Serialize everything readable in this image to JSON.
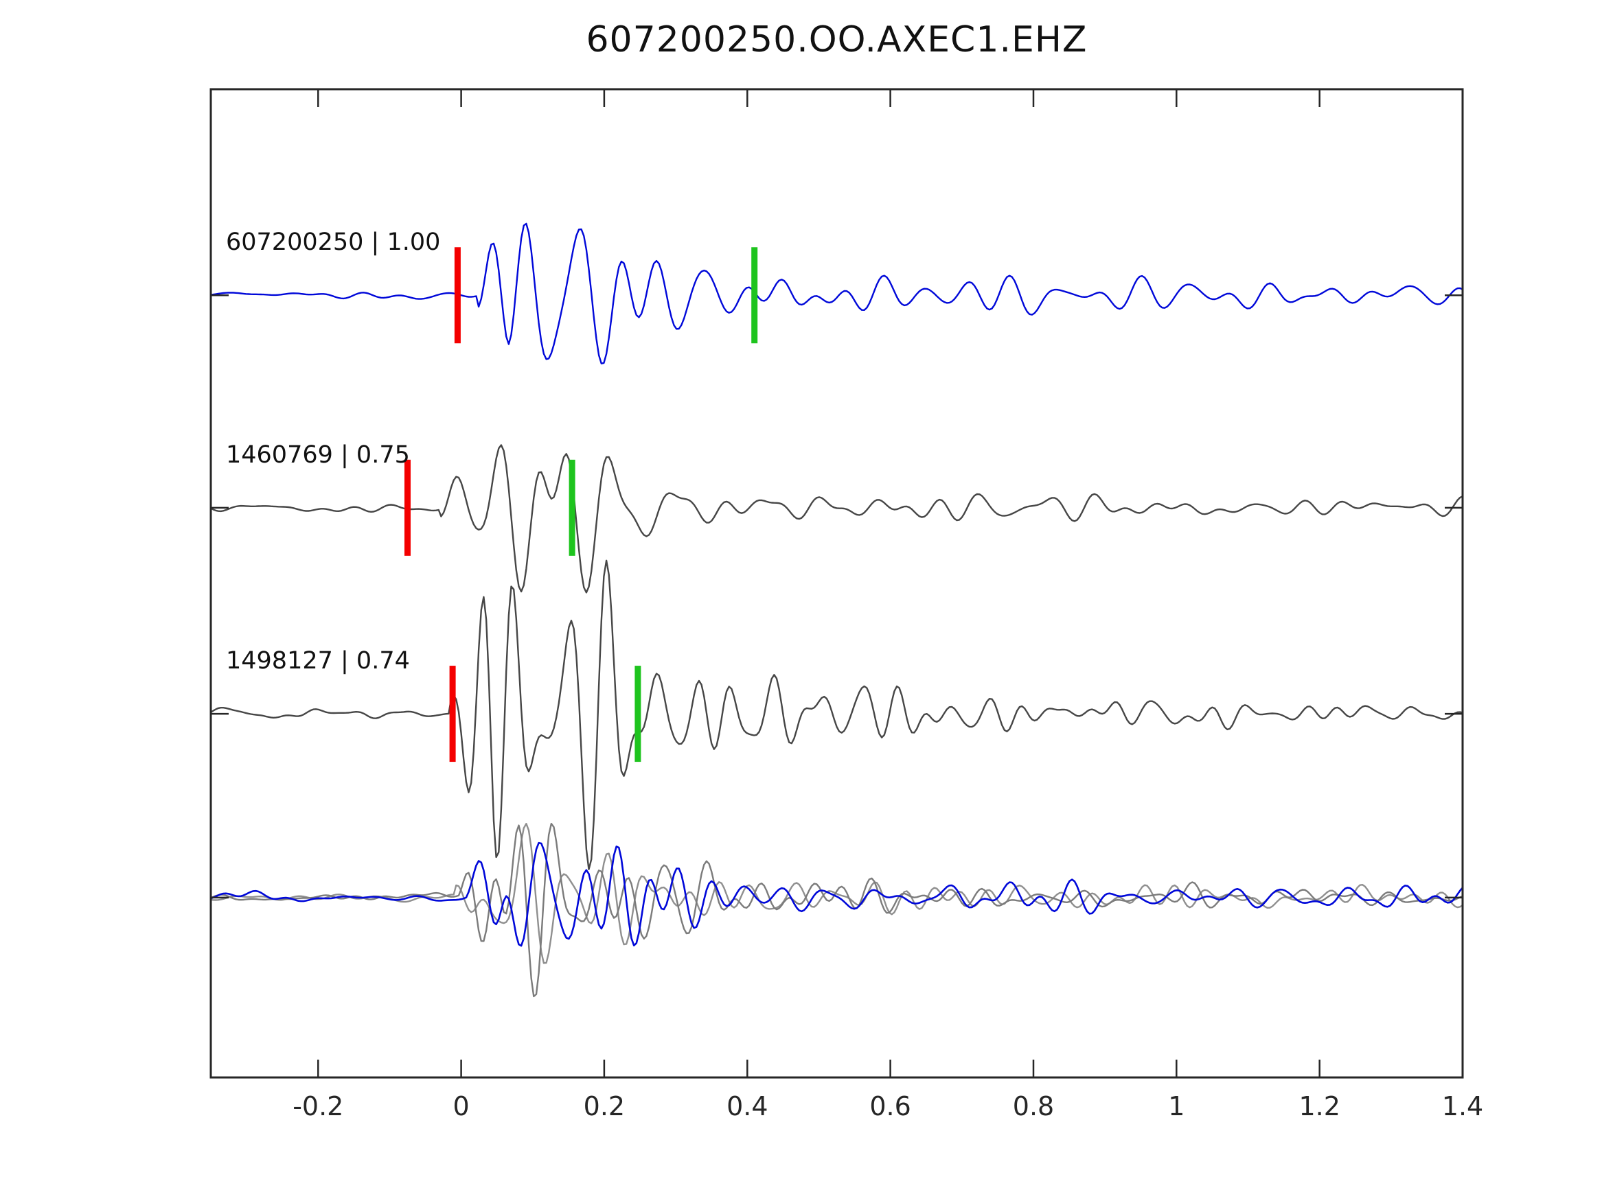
{
  "title": "607200250.OO.AXEC1.EHZ",
  "chart_data": {
    "type": "line",
    "title": "607200250.OO.AXEC1.EHZ",
    "subtitle": "",
    "xlabel": "",
    "ylabel": "",
    "grid": false,
    "legend": null,
    "xlim": [
      -0.35,
      1.4
    ],
    "x_ticks": [
      -0.2,
      0,
      0.2,
      0.4,
      0.6,
      0.8,
      1,
      1.2,
      1.4
    ],
    "x_tick_labels": [
      "-0.2",
      "0",
      "0.2",
      "0.4",
      "0.6",
      "0.8",
      "1",
      "1.2",
      "1.4"
    ],
    "background": "#ffffff",
    "axis_color": "#262626",
    "pick_colors": {
      "red": "#f40000",
      "green": "#1ec41e"
    },
    "traces": [
      {
        "label": "607200250 | 1.00",
        "event_id": "607200250",
        "similarity": "1.00",
        "color": "#0008d9",
        "baseline_frac": 0.2085,
        "picks": {
          "red": -0.005,
          "green": 0.41
        },
        "synth": {
          "seed": 11,
          "n_comp": 10,
          "fmin": 9,
          "fmax": 26,
          "onset": 0.022,
          "rise": 0.045,
          "decay": 0.13,
          "peak": 95,
          "coda": 15,
          "coda_decay": 1.2,
          "noise": 5,
          "clip": 258
        }
      },
      {
        "label": "1460769 | 0.75",
        "event_id": "1460769",
        "similarity": "0.75",
        "color": "#464646",
        "baseline_frac": 0.4235,
        "picks": {
          "red": -0.075,
          "green": 0.155
        },
        "synth": {
          "seed": 22,
          "n_comp": 10,
          "fmin": 10,
          "fmax": 27,
          "onset": -0.03,
          "rise": 0.07,
          "decay": 0.1,
          "peak": 100,
          "coda": 12,
          "coda_decay": 1.0,
          "noise": 6,
          "clip": 305
        }
      },
      {
        "label": "1498127 | 0.74",
        "event_id": "1498127",
        "similarity": "0.74",
        "color": "#464646",
        "baseline_frac": 0.632,
        "picks": {
          "red": -0.012,
          "green": 0.247
        },
        "synth": {
          "seed": 33,
          "n_comp": 10,
          "fmin": 13,
          "fmax": 30,
          "onset": -0.015,
          "rise": 0.06,
          "decay": 0.22,
          "peak": 92,
          "coda": 11,
          "coda_decay": 1.1,
          "noise": 5.5,
          "clip": 265
        }
      }
    ],
    "overlay": {
      "baseline_frac": 0.818,
      "members": [
        {
          "name": "overlay-gray-a",
          "color": "#8f8f8f",
          "synth": {
            "seed": 44,
            "n_comp": 10,
            "fmin": 10,
            "fmax": 27,
            "onset": -0.01,
            "rise": 0.05,
            "decay": 0.14,
            "peak": 70,
            "coda": 10,
            "coda_decay": 1.0,
            "noise": 5,
            "clip": 195
          }
        },
        {
          "name": "overlay-gray-b",
          "color": "#7b7b7b",
          "synth": {
            "seed": 55,
            "n_comp": 10,
            "fmin": 12,
            "fmax": 29,
            "onset": 0.0,
            "rise": 0.06,
            "decay": 0.18,
            "peak": 80,
            "coda": 9,
            "coda_decay": 1.1,
            "noise": 5,
            "clip": 200
          }
        },
        {
          "name": "overlay-blue",
          "color": "#0008d9",
          "synth": {
            "seed": 66,
            "n_comp": 10,
            "fmin": 10,
            "fmax": 26,
            "onset": 0.01,
            "rise": 0.05,
            "decay": 0.15,
            "peak": 62,
            "coda": 12,
            "coda_decay": 1.3,
            "noise": 5,
            "clip": 168
          }
        }
      ]
    }
  }
}
